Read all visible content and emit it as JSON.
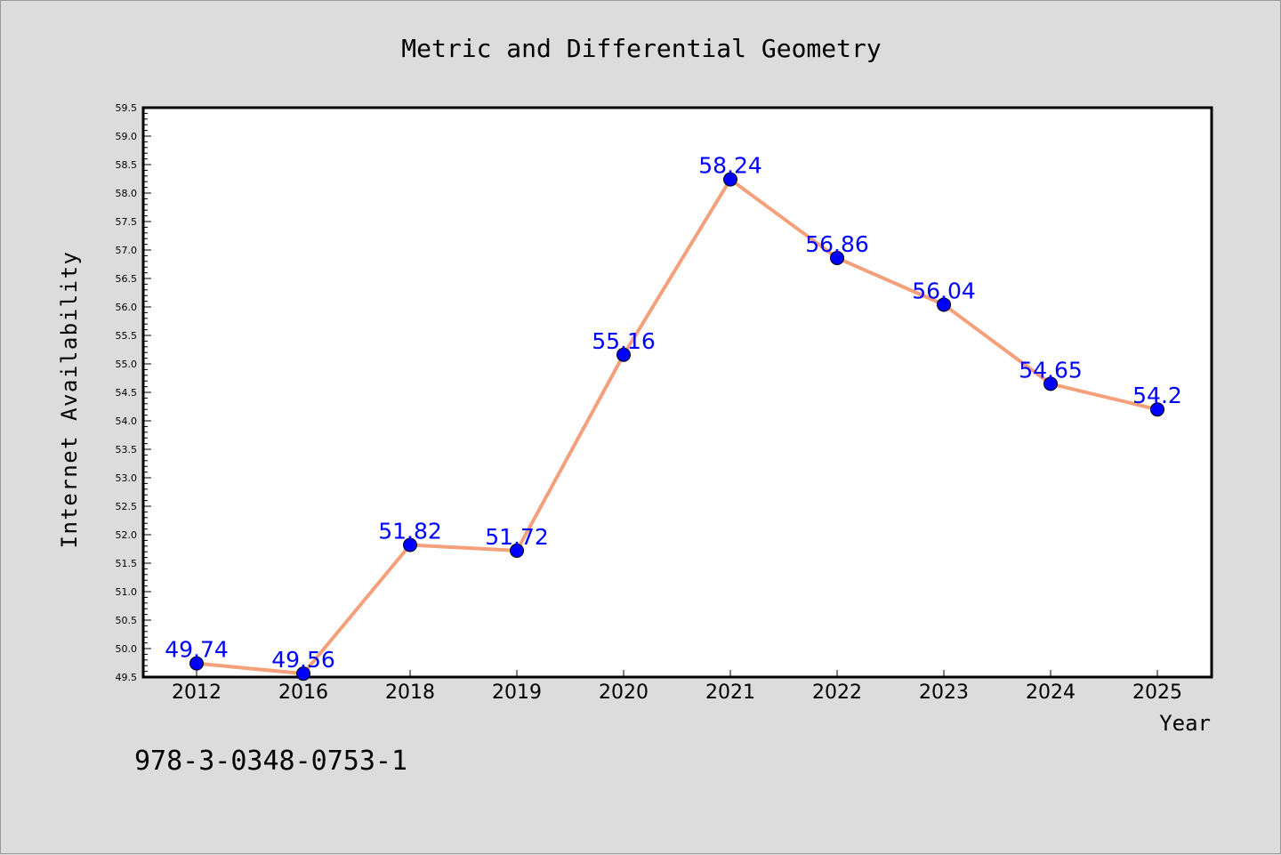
{
  "chart_data": {
    "type": "line",
    "title": "Metric and Differential Geometry",
    "xlabel": "Year",
    "ylabel": "Internet Availability",
    "categories": [
      "2012",
      "2016",
      "2018",
      "2019",
      "2020",
      "2021",
      "2022",
      "2023",
      "2024",
      "2025"
    ],
    "series": [
      {
        "values": [
          49.74,
          49.56,
          51.82,
          51.72,
          55.16,
          58.24,
          56.86,
          56.04,
          54.65,
          54.2
        ],
        "labels": [
          "49.74",
          "49.56",
          "51.82",
          "51.72",
          "55.16",
          "58.24",
          "56.86",
          "56.04",
          "54.65",
          "54.2"
        ]
      }
    ],
    "ylim": [
      49.5,
      59.5
    ],
    "ytick_step": 0.5,
    "yminor_step": 0.1,
    "grid": false,
    "legend": "none"
  },
  "footer": {
    "isbn": "978-3-0348-0753-1"
  },
  "colors": {
    "background": "#dcdcdc",
    "plot_area": "#ffffff",
    "line": "#f4a07a",
    "marker": "#0000ff",
    "data_label": "#0000ff"
  }
}
